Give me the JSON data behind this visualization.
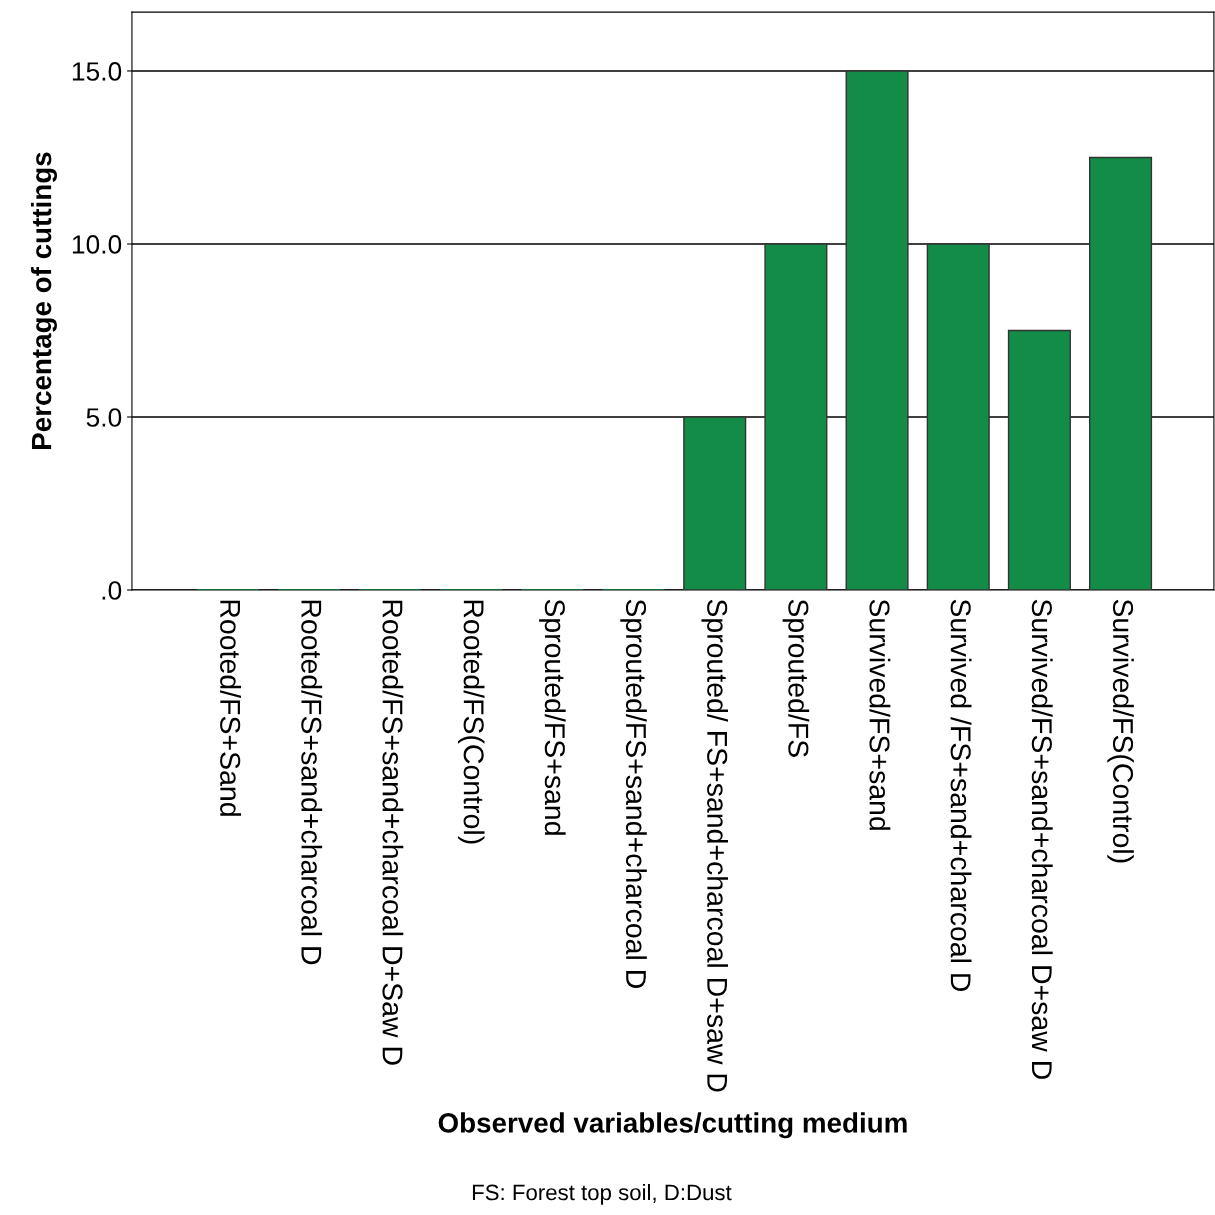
{
  "chart_data": {
    "type": "bar",
    "xlabel": "Observed variables/cutting medium",
    "ylabel": "Percentage of cuttings",
    "annotations": [
      "FS: Forest top soil, D:Dust"
    ],
    "categories": [
      "Rooted/FS+Sand",
      "Rooted/FS+sand+charcoal D",
      "Rooted/FS+sand+charcoal D+Saw D",
      "Rooted/FS(Control)",
      "Sprouted/FS+sand",
      "Sprouted/FS+sand+charcoal D",
      "Sprouted/ FS+sand+charcoal D+saw D",
      "Sprouted/FS",
      "Survived/FS+sand",
      "Survived /FS+sand+charcoal D",
      "Survived/FS+sand+charcoal D+saw D",
      "Survived/FS(Control)"
    ],
    "values": [
      0,
      0,
      0,
      0,
      0,
      0,
      5,
      10,
      15,
      10,
      7.5,
      12.5
    ],
    "color": "#128c46",
    "ylim": [
      0,
      16.7
    ],
    "yticks": [
      {
        "value": 0,
        "label": ".0"
      },
      {
        "value": 5,
        "label": "5.0"
      },
      {
        "value": 10,
        "label": "10.0"
      },
      {
        "value": 15,
        "label": "15.0"
      }
    ],
    "grid": "y",
    "legend": false
  }
}
